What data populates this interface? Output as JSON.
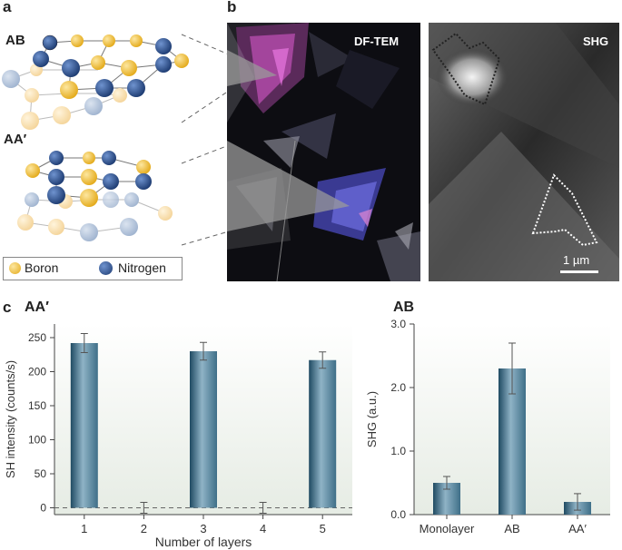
{
  "panel_labels": {
    "a": "a",
    "b": "b",
    "c": "c"
  },
  "panel_a": {
    "stack_labels": [
      "AB",
      "AA′"
    ],
    "legend": [
      {
        "label": "Boron",
        "color": "#f0b92e"
      },
      {
        "label": "Nitrogen",
        "color": "#2b4f8c"
      }
    ],
    "faded_boron_color": "#f7ddb0",
    "faded_nitrogen_color": "#b7c6dc"
  },
  "panel_b": {
    "left_image_label": "DF-TEM",
    "right_image_label": "SHG",
    "scale_bar_label": "1 µm"
  },
  "chart_data": [
    {
      "type": "bar",
      "title": "AA′",
      "xlabel": "Number of layers",
      "ylabel": "SH intensity (counts/s)",
      "categories": [
        "1",
        "2",
        "3",
        "4",
        "5"
      ],
      "values": [
        242,
        0,
        230,
        0,
        217
      ],
      "errors": [
        14,
        8,
        13,
        8,
        12
      ],
      "ylim": [
        -10,
        270
      ],
      "yticks": [
        "0",
        "50",
        "100",
        "150",
        "200",
        "250"
      ],
      "ytick_values": [
        0,
        50,
        100,
        150,
        200,
        250
      ],
      "reference_line": 0,
      "bar_color": "#3f6f88"
    },
    {
      "type": "bar",
      "title": "AB",
      "xlabel": "",
      "ylabel": "SHG (a.u.)",
      "categories": [
        "Monolayer",
        "AB",
        "AA′"
      ],
      "values": [
        0.5,
        2.3,
        0.2
      ],
      "errors": [
        0.1,
        0.4,
        0.13
      ],
      "ylim": [
        0,
        3.0
      ],
      "yticks": [
        "0.0",
        "1.0",
        "2.0",
        "3.0"
      ],
      "ytick_values": [
        0,
        1.0,
        2.0,
        3.0
      ],
      "bar_color": "#3f6f88"
    }
  ]
}
